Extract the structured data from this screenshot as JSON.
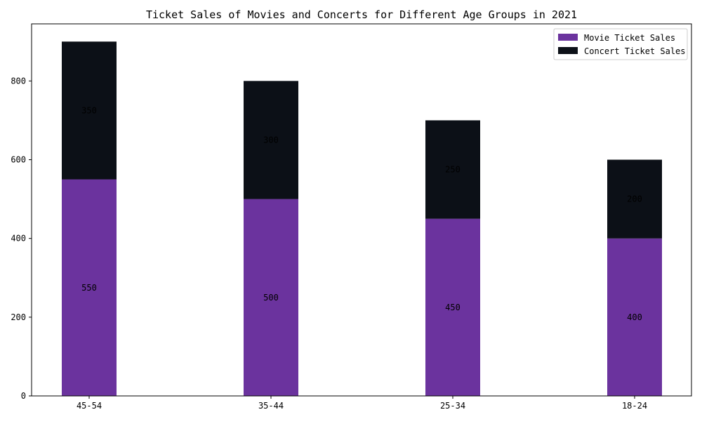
{
  "chart_data": {
    "type": "bar",
    "stacked": true,
    "title": "Ticket Sales of Movies and Concerts for Different Age Groups in 2021",
    "xlabel": "",
    "ylabel": "",
    "categories": [
      "45-54",
      "35-44",
      "25-34",
      "18-24"
    ],
    "series": [
      {
        "name": "Movie Ticket Sales",
        "values": [
          550,
          500,
          450,
          400
        ],
        "color": "#6b339e"
      },
      {
        "name": "Concert Ticket Sales",
        "values": [
          350,
          300,
          250,
          200
        ],
        "color": "#0c1017"
      }
    ],
    "ylim": [
      0,
      945
    ],
    "yticks": [
      0,
      200,
      400,
      600,
      800
    ],
    "grid": false,
    "legend_position": "top-right"
  }
}
